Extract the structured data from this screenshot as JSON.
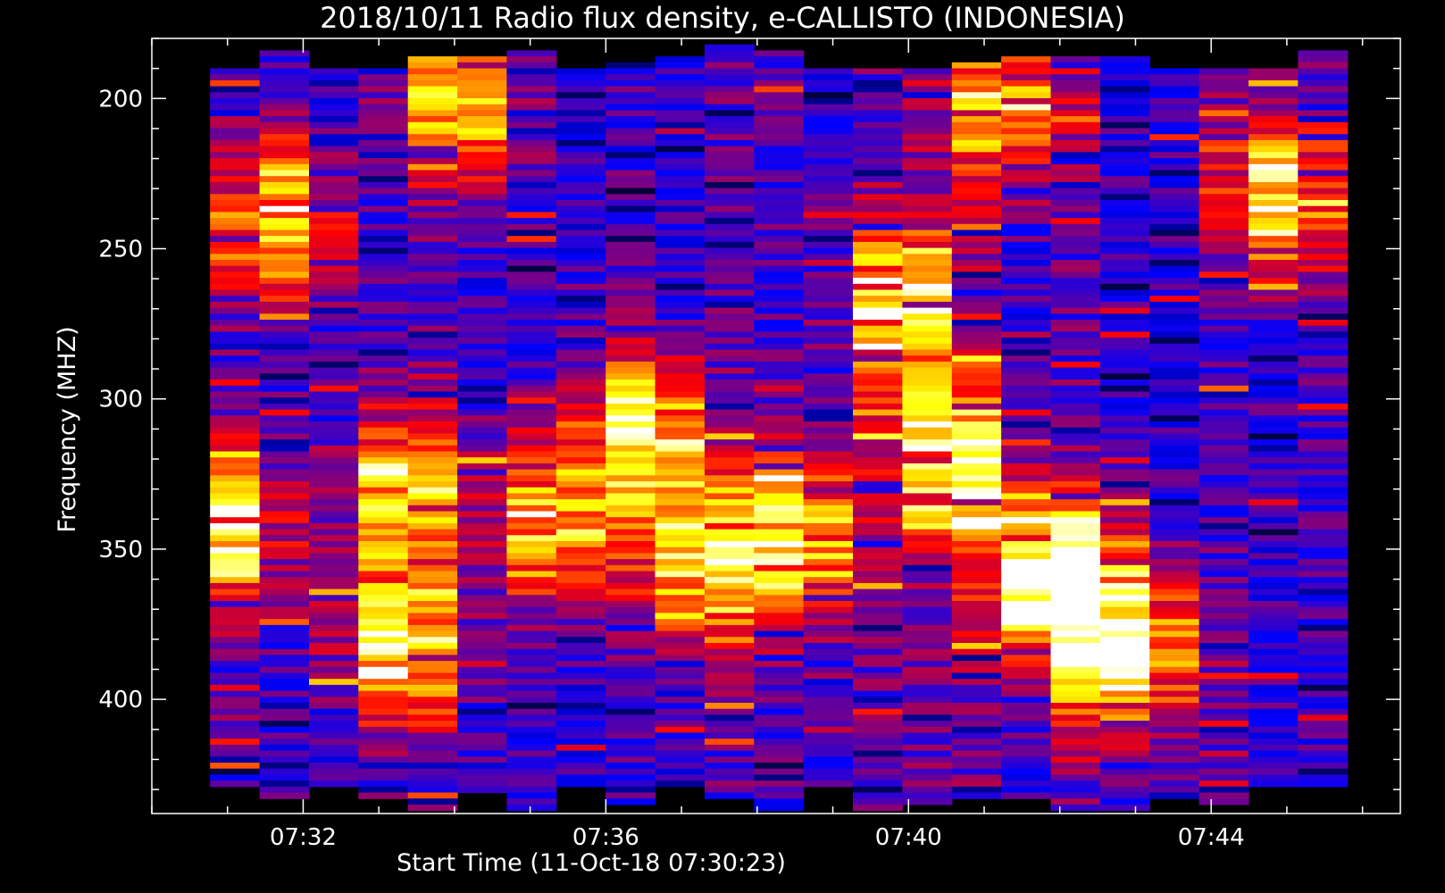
{
  "chart_data": {
    "type": "heatmap",
    "title": "2018/10/11  Radio flux density, e-CALLISTO (INDONESIA)",
    "xlabel": "Start Time (11-Oct-18 07:30:23)",
    "ylabel": "Frequency (MHZ)",
    "x_ticks": [
      "07:32",
      "07:36",
      "07:40",
      "07:44"
    ],
    "x_tick_values_min": [
      32,
      36,
      40,
      44
    ],
    "y_ticks": [
      200,
      250,
      300,
      350,
      400
    ],
    "xlim_min": [
      30.0,
      46.5
    ],
    "ylim": [
      180,
      438
    ],
    "y_reversed": true,
    "data_span_min": [
      30.77,
      45.8
    ],
    "freq_span": [
      180,
      437
    ],
    "colormap": [
      "#000000",
      "#0000ff",
      "#ff0000",
      "#ffff00",
      "#ffffff"
    ],
    "segments": 23,
    "hotspots": [
      {
        "t": 31.0,
        "f": 340,
        "level": 0.85
      },
      {
        "t": 31.7,
        "f": 240,
        "level": 0.8
      },
      {
        "t": 33.3,
        "f": 330,
        "level": 0.75
      },
      {
        "t": 33.2,
        "f": 380,
        "level": 0.85
      },
      {
        "t": 34.1,
        "f": 200,
        "level": 0.75
      },
      {
        "t": 35.3,
        "f": 340,
        "level": 0.8
      },
      {
        "t": 36.5,
        "f": 310,
        "level": 0.8
      },
      {
        "t": 37.2,
        "f": 355,
        "level": 0.8
      },
      {
        "t": 38.5,
        "f": 345,
        "level": 0.85
      },
      {
        "t": 39.9,
        "f": 270,
        "level": 0.8
      },
      {
        "t": 40.6,
        "f": 320,
        "level": 0.85
      },
      {
        "t": 41.3,
        "f": 200,
        "level": 0.75
      },
      {
        "t": 41.9,
        "f": 360,
        "level": 0.85
      },
      {
        "t": 42.4,
        "f": 370,
        "level": 0.75
      },
      {
        "t": 43.1,
        "f": 385,
        "level": 0.75
      },
      {
        "t": 44.9,
        "f": 230,
        "level": 0.8
      }
    ]
  }
}
